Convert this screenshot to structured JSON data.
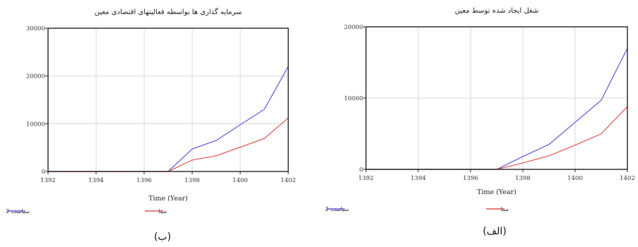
{
  "charts": [
    {
      "type": "line",
      "title": "سرمایه گذاری ها بواسطه فعالیتهای اقتصادی معین",
      "xlabel": "Time (Year)",
      "ylabel": "",
      "panel_label": "(ب)",
      "xlim": [
        1392,
        1402
      ],
      "ylim": [
        0,
        30000
      ],
      "xticks": [
        1392,
        1394,
        1396,
        1398,
        1400,
        1402
      ],
      "yticks": [
        0,
        10000,
        20000,
        30000
      ],
      "grid": true,
      "legend": "bottom",
      "series": [
        {
          "name": "سیاست 2",
          "color": "#5b5bdc",
          "x": [
            1392,
            1397,
            1398,
            1399,
            1400,
            1401,
            1402
          ],
          "y": [
            0,
            0,
            4700,
            6500,
            9800,
            13000,
            22000
          ]
        },
        {
          "name": "مبنا",
          "color": "#e05555",
          "x": [
            1392,
            1397,
            1398,
            1399,
            1400,
            1401,
            1402
          ],
          "y": [
            0,
            0,
            2400,
            3300,
            5100,
            6900,
            11200
          ]
        }
      ]
    },
    {
      "type": "line",
      "title": "شغل ایجاد شده توسط معین",
      "xlabel": "Time (Year)",
      "ylabel": "",
      "panel_label": "(الف)",
      "xlim": [
        1392,
        1402
      ],
      "ylim": [
        0,
        20000
      ],
      "xticks": [
        1392,
        1394,
        1396,
        1398,
        1400,
        1402
      ],
      "yticks": [
        0,
        10000,
        20000
      ],
      "grid": true,
      "legend": "bottom",
      "series": [
        {
          "name": "سیاست 2",
          "color": "#5b5bdc",
          "x": [
            1392,
            1397,
            1398,
            1399,
            1400,
            1401,
            1402
          ],
          "y": [
            0,
            0,
            1800,
            3500,
            6600,
            9700,
            17000
          ]
        },
        {
          "name": "مبنا",
          "color": "#e05555",
          "x": [
            1392,
            1397,
            1398,
            1399,
            1400,
            1401,
            1402
          ],
          "y": [
            0,
            0,
            900,
            1900,
            3400,
            5000,
            8800
          ]
        }
      ]
    }
  ],
  "chart_data": [
    {
      "type": "line",
      "title": "سرمایه گذاری ها بواسطه فعالیتهای اقتصادی معین",
      "xlabel": "Time (Year)",
      "ylabel": "",
      "xlim": [
        1392,
        1402
      ],
      "ylim": [
        0,
        30000
      ],
      "grid": true,
      "legend": "bottom",
      "series": [
        {
          "name": "سیاست 2",
          "x": [
            1392,
            1397,
            1398,
            1399,
            1400,
            1401,
            1402
          ],
          "y": [
            0,
            0,
            4700,
            6500,
            9800,
            13000,
            22000
          ]
        },
        {
          "name": "مبنا",
          "x": [
            1392,
            1397,
            1398,
            1399,
            1400,
            1401,
            1402
          ],
          "y": [
            0,
            0,
            2400,
            3300,
            5100,
            6900,
            11200
          ]
        }
      ]
    },
    {
      "type": "line",
      "title": "شغل ایجاد شده توسط معین",
      "xlabel": "Time (Year)",
      "ylabel": "",
      "xlim": [
        1392,
        1402
      ],
      "ylim": [
        0,
        20000
      ],
      "grid": true,
      "legend": "bottom",
      "series": [
        {
          "name": "سیاست 2",
          "x": [
            1392,
            1397,
            1398,
            1399,
            1400,
            1401,
            1402
          ],
          "y": [
            0,
            0,
            1800,
            3500,
            6600,
            9700,
            17000
          ]
        },
        {
          "name": "مبنا",
          "x": [
            1392,
            1397,
            1398,
            1399,
            1400,
            1401,
            1402
          ],
          "y": [
            0,
            0,
            900,
            1900,
            3400,
            5000,
            8800
          ]
        }
      ]
    }
  ]
}
